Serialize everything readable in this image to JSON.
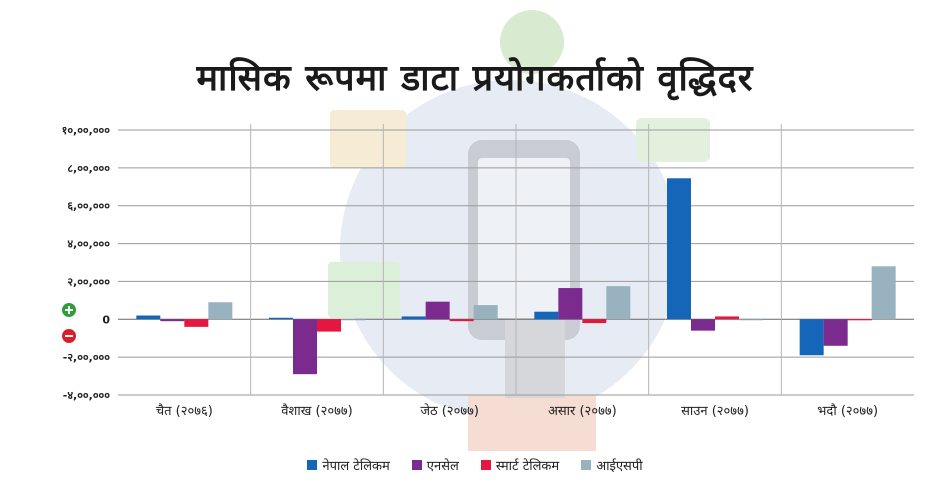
{
  "title": "मासिक रूपमा डाटा प्रयोगकर्ताको वृद्धिदर",
  "colors": {
    "background_illustration": "#dfe5f0",
    "grid": "#9a9a9a",
    "axis_text": "#222222",
    "plus_icon": "#2e9e3a",
    "minus_icon": "#d81f2a"
  },
  "icons": {
    "plus": "plus-circle-icon",
    "minus": "minus-circle-icon"
  },
  "chart_data": {
    "type": "bar",
    "title": "मासिक रूपमा डाटा प्रयोगकर्ताको वृद्धिदर",
    "xlabel": "",
    "ylabel": "",
    "ylim": [
      -400000,
      1000000
    ],
    "yticks": [
      1000000,
      800000,
      600000,
      400000,
      200000,
      0,
      -200000,
      -400000
    ],
    "ytick_labels": [
      "१०,००,०००",
      "८,००,०००",
      "६,००,०००",
      "४,००,०००",
      "२,००,०००",
      "0",
      "-२,००,०००",
      "-४,००,०००"
    ],
    "categories": [
      "चैत (२०७६)",
      "वैशाख (२०७७)",
      "जेठ (२०७७)",
      "असार (२०७७)",
      "साउन (२०७७)",
      "भदौ (२०७७)"
    ],
    "series": [
      {
        "name": "नेपाल टेलिकम",
        "color": "#1565b8",
        "values": [
          20000,
          8000,
          15000,
          40000,
          745000,
          -190000
        ]
      },
      {
        "name": "एनसेल",
        "color": "#7b2a8e",
        "values": [
          -10000,
          -290000,
          93000,
          165000,
          -60000,
          -140000
        ]
      },
      {
        "name": "स्मार्ट टेलिकम",
        "color": "#e3173f",
        "values": [
          -40000,
          -65000,
          -10000,
          -20000,
          15000,
          0
        ]
      },
      {
        "name": "आईएसपी",
        "color": "#98b2c0",
        "values": [
          90000,
          0,
          75000,
          175000,
          -5000,
          280000
        ]
      }
    ],
    "grid": true,
    "legend": "bottom"
  }
}
